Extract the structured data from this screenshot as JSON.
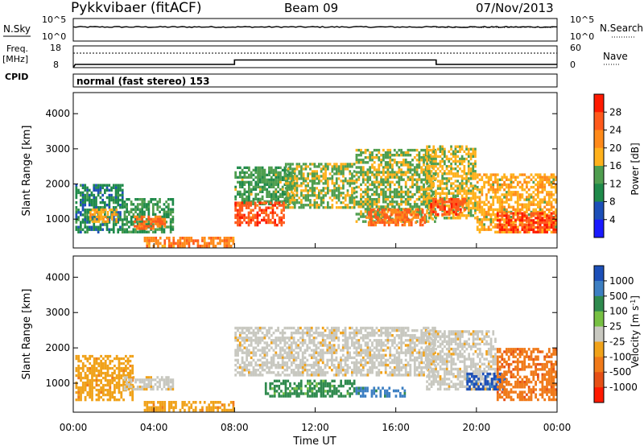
{
  "header": {
    "station": "Pykkvibaer (fitACF)",
    "beam": "Beam 09",
    "date": "07/Nov/2013"
  },
  "nsky_panel": {
    "left_label": "N.Sky",
    "right_label": "N.Search",
    "left_ticks": [
      "10^5",
      "10^0"
    ],
    "right_ticks": [
      "10^5",
      "10^0"
    ]
  },
  "freq_panel": {
    "left_label_1": "Freq.",
    "left_label_2": "[MHz]",
    "right_label": "Nave",
    "left_ticks": [
      "18",
      "8"
    ],
    "right_ticks": [
      "60",
      "0"
    ]
  },
  "cpid_panel": {
    "label": "CPID",
    "text": "normal (fast stereo) 153"
  },
  "power_panel": {
    "ylabel": "Slant Range [km]",
    "yticks": [
      "4000",
      "3000",
      "2000",
      "1000"
    ],
    "colorbar_label": "Power [dB]",
    "colorbar_ticks": [
      "28",
      "24",
      "20",
      "16",
      "12",
      "8",
      "4"
    ],
    "colorbar_colors": [
      "#ff1a00",
      "#ff5a1c",
      "#ff8a1a",
      "#ffb11c",
      "#4f9e4f",
      "#1f8a4a",
      "#1c4fb8",
      "#1a1aff"
    ]
  },
  "velocity_panel": {
    "ylabel": "Slant Range [km]",
    "yticks": [
      "4000",
      "3000",
      "2000",
      "1000"
    ],
    "colorbar_label": "Velocity [m s^-1]",
    "colorbar_ticks": [
      "1000",
      "500",
      "100",
      "25",
      "-25",
      "-100",
      "-500",
      "-1000"
    ],
    "colorbar_colors": [
      "#1c4fb8",
      "#3d7fc2",
      "#2f8a4e",
      "#77c043",
      "#c8c8c0",
      "#f0a21a",
      "#f07a1a",
      "#e65016",
      "#ff1a00"
    ]
  },
  "time_axis": {
    "xlabel": "Time UT",
    "ticks": [
      "00:00",
      "04:00",
      "08:00",
      "12:00",
      "16:00",
      "20:00",
      "00:00"
    ]
  },
  "chart_data": [
    {
      "type": "line",
      "title": "N.Sky / N.Search",
      "x": [
        0,
        24
      ],
      "series": [
        {
          "name": "N.Sky",
          "values": [
            1000,
            1000
          ]
        }
      ],
      "ylim": [
        1,
        100000
      ],
      "yscale": "log"
    },
    {
      "type": "line",
      "title": "Freq. / Nave",
      "x": [
        0,
        0.1,
        8,
        8,
        18,
        18,
        24
      ],
      "series": [
        {
          "name": "Freq.",
          "values": [
            8,
            9.5,
            9.5,
            11.5,
            11.5,
            9.5,
            9.5
          ]
        }
      ],
      "ylim": [
        8,
        18
      ]
    },
    {
      "type": "heatmap",
      "title": "Power [dB]",
      "xlim": [
        0,
        24
      ],
      "ylim": [
        180,
        4600
      ],
      "clim": [
        0,
        30
      ],
      "regions": [
        {
          "t0": 0.1,
          "t1": 2.5,
          "r0": 600,
          "r1": 2000,
          "value": 8
        },
        {
          "t0": 0.8,
          "t1": 2.2,
          "r0": 900,
          "r1": 1300,
          "value": 18
        },
        {
          "t0": 2.5,
          "t1": 5.0,
          "r0": 600,
          "r1": 1600,
          "value": 10
        },
        {
          "t0": 3.0,
          "t1": 4.6,
          "r0": 700,
          "r1": 1100,
          "value": 24
        },
        {
          "t0": 3.5,
          "t1": 8.0,
          "r0": 200,
          "r1": 500,
          "value": 22
        },
        {
          "t0": 8.0,
          "t1": 11.0,
          "r0": 1400,
          "r1": 2500,
          "value": 12
        },
        {
          "t0": 8.0,
          "t1": 10.5,
          "r0": 800,
          "r1": 1500,
          "value": 26
        },
        {
          "t0": 10.5,
          "t1": 14.0,
          "r0": 1300,
          "r1": 2600,
          "value": 14
        },
        {
          "t0": 14.0,
          "t1": 18.0,
          "r0": 900,
          "r1": 3000,
          "value": 14
        },
        {
          "t0": 14.5,
          "t1": 17.5,
          "r0": 800,
          "r1": 1300,
          "value": 24
        },
        {
          "t0": 17.5,
          "t1": 20.0,
          "r0": 1000,
          "r1": 3100,
          "value": 16
        },
        {
          "t0": 17.7,
          "t1": 19.5,
          "r0": 1100,
          "r1": 1600,
          "value": 26
        },
        {
          "t0": 20.0,
          "t1": 24.0,
          "r0": 600,
          "r1": 2300,
          "value": 18
        },
        {
          "t0": 21.0,
          "t1": 24.0,
          "r0": 600,
          "r1": 1200,
          "value": 28
        }
      ]
    },
    {
      "type": "heatmap",
      "title": "Velocity [m s^-1]",
      "xlim": [
        0,
        24
      ],
      "ylim": [
        180,
        4600
      ],
      "clim": [
        -1000,
        1000
      ],
      "regions": [
        {
          "t0": 0.1,
          "t1": 3.0,
          "r0": 500,
          "r1": 1800,
          "value": -100
        },
        {
          "t0": 2.5,
          "t1": 5.0,
          "r0": 800,
          "r1": 1200,
          "value": 0
        },
        {
          "t0": 3.5,
          "t1": 8.0,
          "r0": 200,
          "r1": 500,
          "value": -100
        },
        {
          "t0": 8.0,
          "t1": 18.0,
          "r0": 1200,
          "r1": 2600,
          "value": 0
        },
        {
          "t0": 9.5,
          "t1": 14.0,
          "r0": 600,
          "r1": 1100,
          "value": 300
        },
        {
          "t0": 14.0,
          "t1": 16.5,
          "r0": 600,
          "r1": 900,
          "value": 500
        },
        {
          "t0": 17.5,
          "t1": 21.0,
          "r0": 800,
          "r1": 2500,
          "value": 0
        },
        {
          "t0": 19.5,
          "t1": 21.5,
          "r0": 800,
          "r1": 1300,
          "value": 1000
        },
        {
          "t0": 21.0,
          "t1": 24.0,
          "r0": 500,
          "r1": 2000,
          "value": -500
        }
      ]
    }
  ]
}
